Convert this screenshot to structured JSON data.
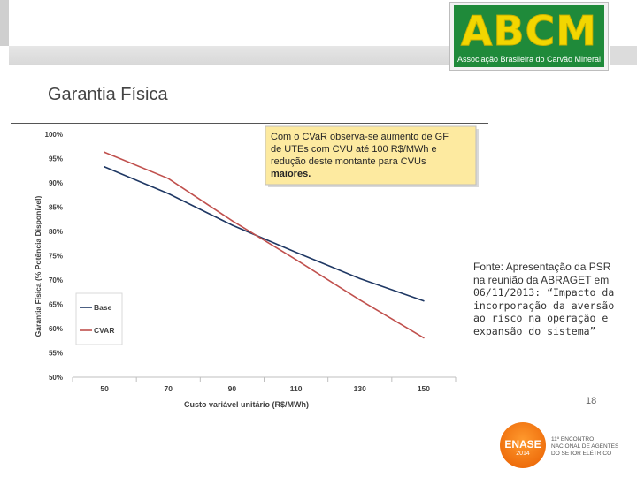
{
  "header": {
    "logo_text": "ABCM",
    "logo_subtitle": "Associação Brasileira do Carvão Mineral",
    "logo_colors": {
      "background": "#1f8a3a",
      "letters": "#f2d600"
    }
  },
  "slide": {
    "title": "Garantia Física",
    "source_lines": [
      "Fonte: Apresentação da PSR",
      "na reunião da ABRAGET em",
      "06/11/2013: “Impacto da",
      "incorporação da aversão",
      "ao risco na operação e",
      "expansão do sistema”"
    ],
    "page_number": "18"
  },
  "footer_logo": {
    "name": "ENASE",
    "year": "2014",
    "description": "11º ENCONTRO NACIONAL DE AGENTES DO SETOR ELÉTRICO"
  },
  "chart_data": {
    "type": "line",
    "x": [
      50,
      70,
      90,
      110,
      130,
      150
    ],
    "x_tick_labels": [
      "50",
      "70",
      "90",
      "110",
      "130",
      "150"
    ],
    "series": [
      {
        "name": "Base",
        "color": "#1f3864",
        "values": [
          93.3,
          87.8,
          81.3,
          75.7,
          70.3,
          65.7
        ]
      },
      {
        "name": "CVAR",
        "color": "#c0504d",
        "values": [
          96.3,
          90.9,
          82.2,
          74.2,
          65.9,
          58.1
        ]
      }
    ],
    "ylim": [
      50,
      100
    ],
    "y_ticks": [
      50,
      55,
      60,
      65,
      70,
      75,
      80,
      85,
      90,
      95,
      100
    ],
    "y_tick_labels": [
      "50%",
      "55%",
      "60%",
      "65%",
      "70%",
      "75%",
      "80%",
      "85%",
      "90%",
      "95%",
      "100%"
    ],
    "xlabel": "Custo variável unitário (R$/MWh)",
    "ylabel": "Garantia Física (% Potência Disponível)",
    "legend_placement": "left",
    "grid": false,
    "annotation": [
      "Com o CVaR observa-se aumento de GF",
      "de UTEs com CVU até 100 R$/MWh e",
      "redução deste montante para CVUs",
      "maiores."
    ],
    "annotation_color": "#fdeaa0"
  }
}
